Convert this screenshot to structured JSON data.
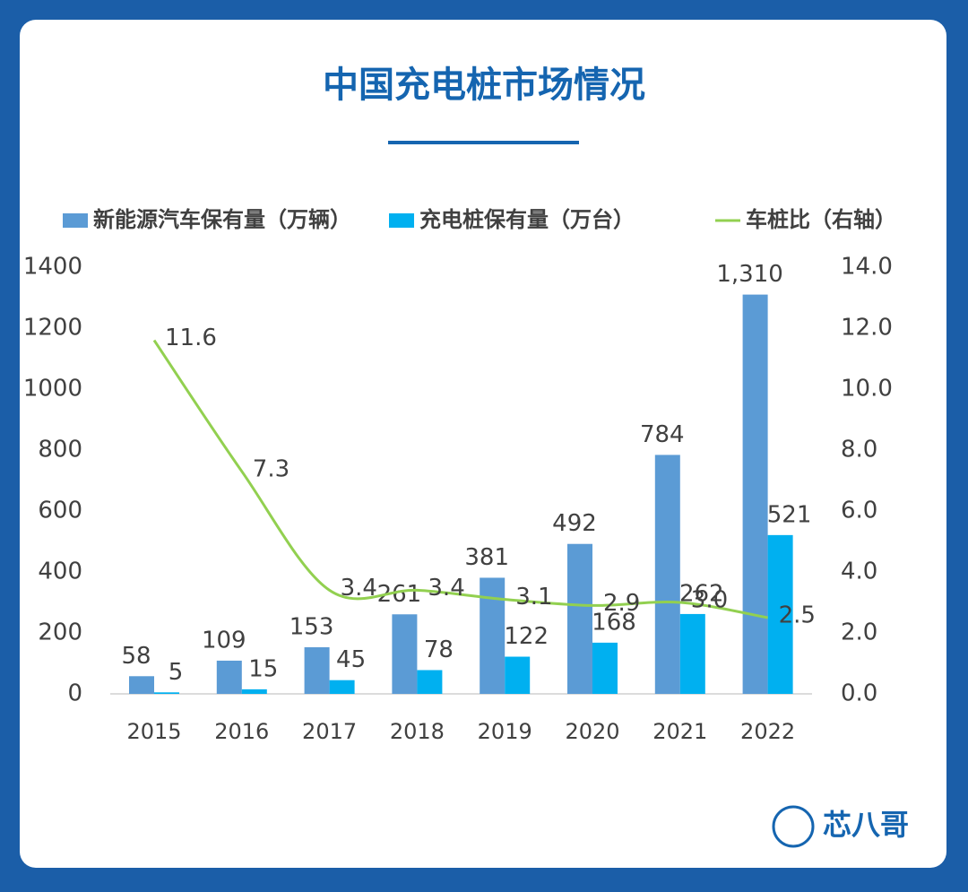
{
  "chart_data": {
    "type": "bar-line",
    "title": "中国充电桩市场情况",
    "brand": "芯八哥",
    "categories": [
      "2015",
      "2016",
      "2017",
      "2018",
      "2019",
      "2020",
      "2021",
      "2022"
    ],
    "series": [
      {
        "name": "新能源汽车保有量（万辆）",
        "type": "bar",
        "color": "#5b9bd5",
        "values": [
          58,
          109,
          153,
          261,
          381,
          492,
          784,
          1310
        ],
        "value_labels": [
          "58",
          "109",
          "153",
          "261",
          "381",
          "492",
          "784",
          "1,310"
        ]
      },
      {
        "name": "充电桩保有量（万台）",
        "type": "bar",
        "color": "#00b0f0",
        "values": [
          5,
          15,
          45,
          78,
          122,
          168,
          262,
          521
        ]
      },
      {
        "name": "车桩比（右轴）",
        "type": "line",
        "axis": "y2",
        "color": "#92d050",
        "values": [
          11.6,
          7.3,
          3.4,
          3.4,
          3.1,
          2.9,
          3.0,
          2.5
        ],
        "value_labels": [
          "11.6",
          "7.3",
          "3.4",
          "3.4",
          "3.1",
          "2.9",
          "3.0",
          "2.5"
        ]
      }
    ],
    "ylim": [
      0,
      1400
    ],
    "yticks": [
      0,
      200,
      400,
      600,
      800,
      1000,
      1200,
      1400
    ],
    "y2lim": [
      0,
      14
    ],
    "y2ticks": [
      {
        "value": 0,
        "label": "0.0"
      },
      {
        "value": 2,
        "label": "2.0"
      },
      {
        "value": 4,
        "label": "4.0"
      },
      {
        "value": 6,
        "label": "6.0"
      },
      {
        "value": 8,
        "label": "8.0"
      },
      {
        "value": 10,
        "label": "10.0"
      },
      {
        "value": 12,
        "label": "12.0"
      },
      {
        "value": 14,
        "label": "14.0"
      }
    ],
    "legend": "top",
    "grid": false
  }
}
